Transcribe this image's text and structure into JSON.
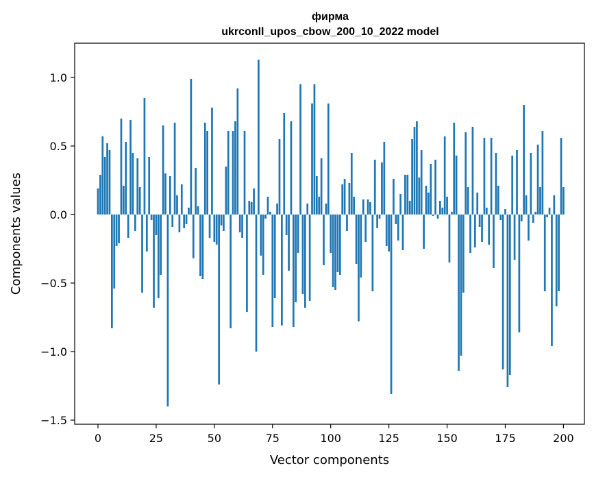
{
  "chart_data": {
    "type": "bar",
    "title": [
      "фирма",
      "ukrconll_upos_cbow_200_10_2022 model"
    ],
    "xlabel": "Vector components",
    "ylabel": "Components values",
    "xlim": [
      -10,
      209
    ],
    "ylim": [
      -1.53,
      1.25
    ],
    "xticks": [
      0,
      25,
      50,
      75,
      100,
      125,
      150,
      175,
      200
    ],
    "xtick_labels": [
      "0",
      "25",
      "50",
      "75",
      "100",
      "125",
      "150",
      "175",
      "200"
    ],
    "yticks": [
      -1.5,
      -1.0,
      -0.5,
      0.0,
      0.5,
      1.0
    ],
    "ytick_labels": [
      "−1.5",
      "−1.0",
      "−0.5",
      "0.0",
      "0.5",
      "1.0"
    ],
    "bar_color": "#1f77b4",
    "x_start": 0,
    "values": [
      0.19,
      0.29,
      0.57,
      0.42,
      0.52,
      0.47,
      -0.83,
      -0.54,
      -0.23,
      -0.21,
      0.7,
      0.21,
      0.53,
      -0.17,
      0.69,
      0.45,
      -0.12,
      0.41,
      0.2,
      -0.57,
      0.85,
      -0.27,
      0.42,
      -0.04,
      -0.68,
      -0.15,
      -0.61,
      -0.44,
      0.65,
      0.3,
      -1.4,
      0.28,
      -0.09,
      0.67,
      0.14,
      -0.13,
      0.22,
      -0.1,
      -0.07,
      0.05,
      0.99,
      -0.32,
      0.34,
      0.06,
      -0.45,
      -0.47,
      0.67,
      0.61,
      -0.17,
      0.78,
      -0.2,
      -0.22,
      -1.24,
      -0.08,
      -0.12,
      0.35,
      0.61,
      -0.83,
      0.61,
      0.68,
      0.92,
      -0.13,
      -0.17,
      0.61,
      -0.71,
      0.1,
      0.09,
      0.19,
      -1.0,
      1.13,
      -0.3,
      -0.44,
      -0.03,
      0.13,
      0.02,
      -0.82,
      -0.61,
      0.08,
      0.55,
      -0.81,
      0.74,
      -0.15,
      -0.41,
      0.68,
      -0.82,
      -0.64,
      -0.28,
      0.95,
      -0.58,
      -0.68,
      0.08,
      -0.63,
      0.81,
      0.95,
      0.28,
      0.13,
      0.41,
      -0.37,
      0.08,
      0.81,
      -0.28,
      -0.53,
      -0.55,
      -0.42,
      -0.44,
      0.22,
      0.26,
      -0.12,
      0.23,
      0.45,
      0.13,
      -0.36,
      -0.78,
      -0.46,
      0.11,
      -0.2,
      0.11,
      0.09,
      -0.56,
      0.4,
      -0.1,
      -0.03,
      0.38,
      0.53,
      -0.23,
      -0.27,
      -1.31,
      0.26,
      -0.07,
      -0.19,
      0.15,
      -0.26,
      0.29,
      0.29,
      0.1,
      0.55,
      0.64,
      0.68,
      0.27,
      0.47,
      -0.25,
      0.21,
      0.16,
      0.37,
      -0.01,
      0.4,
      -0.03,
      0.1,
      0.05,
      0.57,
      0.13,
      -0.35,
      0.02,
      0.67,
      0.43,
      -1.14,
      -1.03,
      -0.57,
      0.6,
      0.2,
      -0.28,
      0.64,
      -0.24,
      0.16,
      -0.09,
      -0.2,
      0.56,
      0.05,
      -0.22,
      0.56,
      -0.39,
      0.45,
      0.21,
      -0.04,
      -1.13,
      0.04,
      -1.26,
      -1.17,
      0.43,
      -0.33,
      0.47,
      -0.86,
      -0.05,
      0.8,
      0.14,
      -0.19,
      0.45,
      -0.06,
      0.02,
      0.51,
      0.2,
      0.61,
      -0.56,
      -0.02,
      0.05,
      -0.96,
      0.14,
      -0.67,
      -0.56,
      0.56,
      0.2
    ]
  }
}
